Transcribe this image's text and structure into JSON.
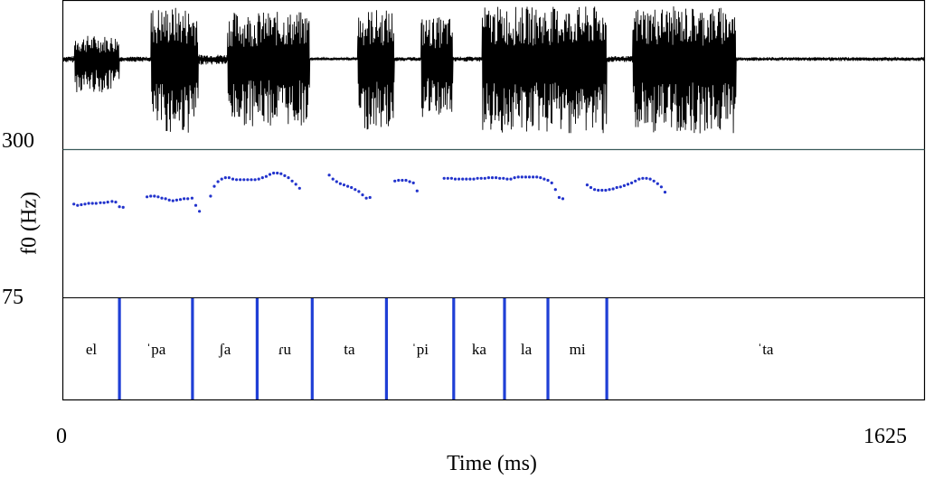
{
  "chart_data": {
    "type": "scatter",
    "panels": [
      "waveform",
      "f0",
      "syllable-tier"
    ],
    "xlabel": "Time (ms)",
    "ylabel": "f0 (Hz)",
    "xlim": [
      0,
      1625
    ],
    "ylim": [
      75,
      300
    ],
    "x_tick_labels": [
      "0",
      "1625"
    ],
    "y_tick_labels": [
      "300",
      "75"
    ],
    "colors": {
      "pitch_points": "#2233cc",
      "boundaries": "#1f3fd6",
      "waveform": "#000000",
      "frame": "#000000"
    },
    "f0_points": [
      [
        20,
        218
      ],
      [
        27,
        216
      ],
      [
        34,
        217
      ],
      [
        41,
        218
      ],
      [
        48,
        219
      ],
      [
        55,
        219
      ],
      [
        62,
        219
      ],
      [
        70,
        220
      ],
      [
        77,
        220
      ],
      [
        84,
        221
      ],
      [
        92,
        222
      ],
      [
        99,
        221
      ],
      [
        106,
        214
      ],
      [
        113,
        213
      ],
      [
        158,
        229
      ],
      [
        165,
        230
      ],
      [
        172,
        230
      ],
      [
        179,
        229
      ],
      [
        186,
        227
      ],
      [
        193,
        226
      ],
      [
        200,
        224
      ],
      [
        207,
        223
      ],
      [
        214,
        224
      ],
      [
        221,
        225
      ],
      [
        228,
        226
      ],
      [
        235,
        226
      ],
      [
        243,
        227
      ],
      [
        250,
        216
      ],
      [
        257,
        207
      ],
      [
        278,
        230
      ],
      [
        285,
        245
      ],
      [
        292,
        252
      ],
      [
        299,
        256
      ],
      [
        306,
        258
      ],
      [
        313,
        258
      ],
      [
        320,
        256
      ],
      [
        327,
        255
      ],
      [
        334,
        255
      ],
      [
        341,
        255
      ],
      [
        348,
        255
      ],
      [
        355,
        255
      ],
      [
        362,
        255
      ],
      [
        369,
        256
      ],
      [
        376,
        258
      ],
      [
        383,
        260
      ],
      [
        390,
        263
      ],
      [
        397,
        265
      ],
      [
        404,
        265
      ],
      [
        411,
        264
      ],
      [
        418,
        261
      ],
      [
        425,
        258
      ],
      [
        432,
        253
      ],
      [
        439,
        248
      ],
      [
        446,
        242
      ],
      [
        502,
        262
      ],
      [
        509,
        256
      ],
      [
        516,
        252
      ],
      [
        523,
        249
      ],
      [
        530,
        247
      ],
      [
        537,
        245
      ],
      [
        544,
        243
      ],
      [
        551,
        240
      ],
      [
        558,
        237
      ],
      [
        565,
        232
      ],
      [
        572,
        227
      ],
      [
        579,
        228
      ],
      [
        626,
        253
      ],
      [
        633,
        254
      ],
      [
        640,
        254
      ],
      [
        647,
        254
      ],
      [
        654,
        252
      ],
      [
        661,
        250
      ],
      [
        668,
        238
      ],
      [
        719,
        257
      ],
      [
        726,
        257
      ],
      [
        733,
        257
      ],
      [
        740,
        256
      ],
      [
        747,
        256
      ],
      [
        754,
        256
      ],
      [
        761,
        256
      ],
      [
        768,
        256
      ],
      [
        775,
        256
      ],
      [
        782,
        257
      ],
      [
        789,
        257
      ],
      [
        796,
        257
      ],
      [
        803,
        258
      ],
      [
        810,
        258
      ],
      [
        817,
        258
      ],
      [
        824,
        257
      ],
      [
        831,
        257
      ],
      [
        838,
        256
      ],
      [
        845,
        256
      ],
      [
        852,
        258
      ],
      [
        859,
        259
      ],
      [
        866,
        259
      ],
      [
        873,
        259
      ],
      [
        880,
        259
      ],
      [
        887,
        259
      ],
      [
        894,
        259
      ],
      [
        901,
        258
      ],
      [
        908,
        256
      ],
      [
        915,
        254
      ],
      [
        922,
        250
      ],
      [
        929,
        240
      ],
      [
        936,
        228
      ],
      [
        943,
        226
      ],
      [
        989,
        247
      ],
      [
        996,
        243
      ],
      [
        1003,
        240
      ],
      [
        1010,
        239
      ],
      [
        1017,
        239
      ],
      [
        1024,
        239
      ],
      [
        1031,
        240
      ],
      [
        1038,
        241
      ],
      [
        1045,
        243
      ],
      [
        1052,
        244
      ],
      [
        1059,
        246
      ],
      [
        1066,
        248
      ],
      [
        1073,
        250
      ],
      [
        1080,
        253
      ],
      [
        1087,
        256
      ],
      [
        1094,
        257
      ],
      [
        1101,
        257
      ],
      [
        1108,
        256
      ],
      [
        1115,
        253
      ],
      [
        1122,
        249
      ],
      [
        1129,
        244
      ],
      [
        1136,
        236
      ]
    ],
    "boundaries_ms": [
      106,
      244,
      366,
      470,
      610,
      737,
      833,
      915,
      1026
    ],
    "syllables": [
      {
        "label": "el",
        "start": 0,
        "end": 106
      },
      {
        "label": "ˈpa",
        "start": 106,
        "end": 244
      },
      {
        "label": "ʃa",
        "start": 244,
        "end": 366
      },
      {
        "label": "ɾu",
        "start": 366,
        "end": 470
      },
      {
        "label": "ta",
        "start": 470,
        "end": 610
      },
      {
        "label": "ˈpi",
        "start": 610,
        "end": 737
      },
      {
        "label": "ka",
        "start": 737,
        "end": 833
      },
      {
        "label": "la",
        "start": 833,
        "end": 915
      },
      {
        "label": "mi",
        "start": 915,
        "end": 1026
      },
      {
        "label": "ˈta",
        "start": 1026,
        "end": 1625
      }
    ],
    "waveform_segments": [
      [
        0,
        20,
        0.05
      ],
      [
        20,
        105,
        0.45
      ],
      [
        105,
        165,
        0.04
      ],
      [
        165,
        255,
        1.0
      ],
      [
        255,
        310,
        0.08
      ],
      [
        310,
        465,
        0.9
      ],
      [
        465,
        555,
        0.02
      ],
      [
        555,
        625,
        0.95
      ],
      [
        625,
        675,
        0.03
      ],
      [
        675,
        735,
        0.8
      ],
      [
        735,
        790,
        0.04
      ],
      [
        790,
        1025,
        1.0
      ],
      [
        1025,
        1075,
        0.05
      ],
      [
        1075,
        1270,
        1.0
      ],
      [
        1270,
        1625,
        0.03
      ]
    ]
  }
}
